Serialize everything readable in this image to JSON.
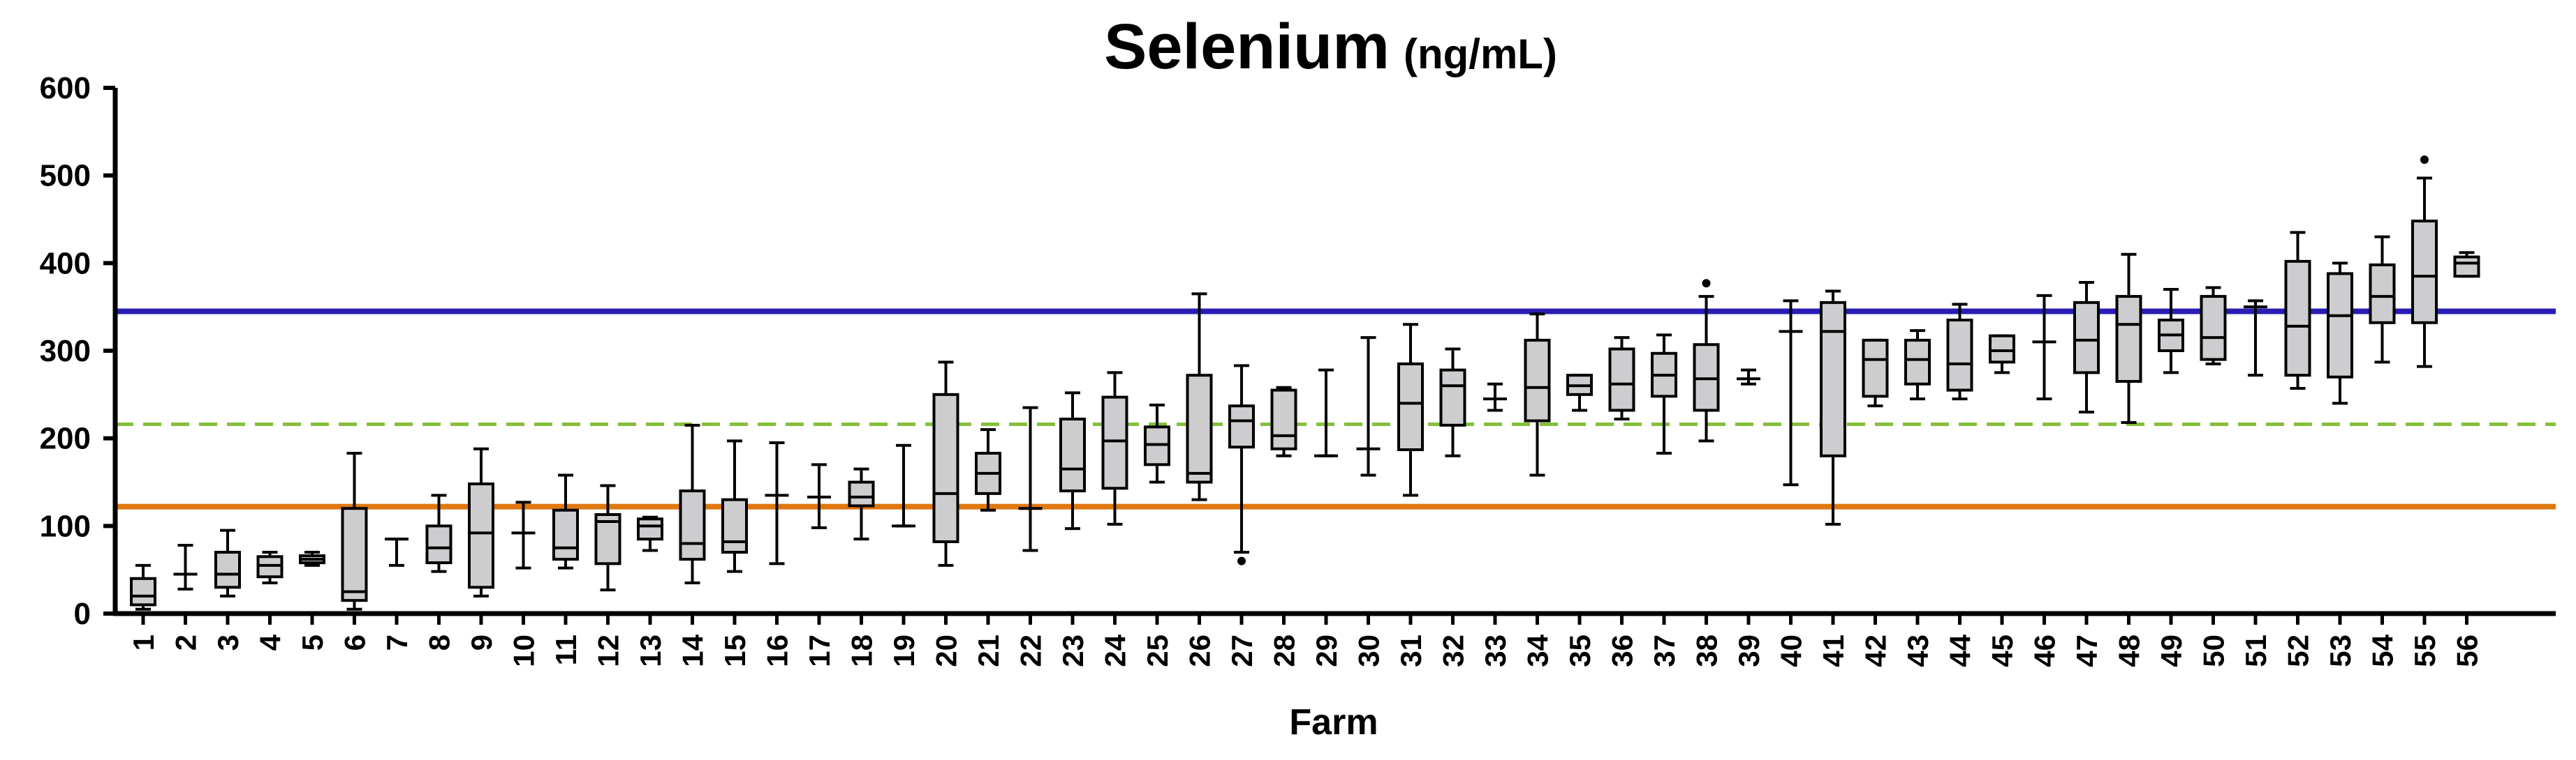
{
  "chart_data": {
    "type": "boxplot",
    "title": "Selenium",
    "title_unit": "(ng/mL)",
    "xlabel": "Farm",
    "ylabel": "",
    "ylim": [
      0,
      600
    ],
    "yticks": [
      0,
      100,
      200,
      300,
      400,
      500,
      600
    ],
    "categories": [
      "1",
      "2",
      "3",
      "4",
      "5",
      "6",
      "7",
      "8",
      "9",
      "10",
      "11",
      "12",
      "13",
      "14",
      "15",
      "16",
      "17",
      "18",
      "19",
      "20",
      "21",
      "22",
      "23",
      "24",
      "25",
      "26",
      "27",
      "28",
      "29",
      "30",
      "31",
      "32",
      "33",
      "34",
      "35",
      "36",
      "37",
      "38",
      "39",
      "40",
      "41",
      "42",
      "43",
      "44",
      "45",
      "46",
      "47",
      "48",
      "49",
      "50",
      "51",
      "52",
      "53",
      "54",
      "55",
      "56"
    ],
    "boxes": [
      {
        "farm": "1",
        "min": 5,
        "q1": 10,
        "median": 20,
        "q3": 40,
        "max": 55,
        "outliers": []
      },
      {
        "farm": "2",
        "min": 28,
        "q1": 45,
        "median": 45,
        "q3": 45,
        "max": 78,
        "outliers": []
      },
      {
        "farm": "3",
        "min": 20,
        "q1": 30,
        "median": 45,
        "q3": 70,
        "max": 95,
        "outliers": []
      },
      {
        "farm": "4",
        "min": 35,
        "q1": 42,
        "median": 55,
        "q3": 65,
        "max": 70,
        "outliers": []
      },
      {
        "farm": "5",
        "min": 55,
        "q1": 58,
        "median": 62,
        "q3": 66,
        "max": 70,
        "outliers": []
      },
      {
        "farm": "6",
        "min": 5,
        "q1": 15,
        "median": 25,
        "q3": 120,
        "max": 183,
        "outliers": []
      },
      {
        "farm": "7",
        "min": 55,
        "q1": 85,
        "median": 85,
        "q3": 85,
        "max": 85,
        "outliers": []
      },
      {
        "farm": "8",
        "min": 48,
        "q1": 58,
        "median": 75,
        "q3": 100,
        "max": 135,
        "outliers": []
      },
      {
        "farm": "9",
        "min": 20,
        "q1": 30,
        "median": 92,
        "q3": 148,
        "max": 188,
        "outliers": []
      },
      {
        "farm": "10",
        "min": 52,
        "q1": 92,
        "median": 92,
        "q3": 92,
        "max": 127,
        "outliers": []
      },
      {
        "farm": "11",
        "min": 52,
        "q1": 62,
        "median": 75,
        "q3": 118,
        "max": 158,
        "outliers": []
      },
      {
        "farm": "12",
        "min": 27,
        "q1": 57,
        "median": 105,
        "q3": 113,
        "max": 146,
        "outliers": []
      },
      {
        "farm": "13",
        "min": 72,
        "q1": 85,
        "median": 100,
        "q3": 108,
        "max": 110,
        "outliers": []
      },
      {
        "farm": "14",
        "min": 35,
        "q1": 62,
        "median": 80,
        "q3": 140,
        "max": 215,
        "outliers": []
      },
      {
        "farm": "15",
        "min": 48,
        "q1": 70,
        "median": 82,
        "q3": 130,
        "max": 197,
        "outliers": []
      },
      {
        "farm": "16",
        "min": 57,
        "q1": 135,
        "median": 135,
        "q3": 135,
        "max": 195,
        "outliers": []
      },
      {
        "farm": "17",
        "min": 98,
        "q1": 133,
        "median": 133,
        "q3": 133,
        "max": 170,
        "outliers": []
      },
      {
        "farm": "18",
        "min": 85,
        "q1": 123,
        "median": 133,
        "q3": 150,
        "max": 165,
        "outliers": []
      },
      {
        "farm": "19",
        "min": 100,
        "q1": 100,
        "median": 100,
        "q3": 100,
        "max": 192,
        "outliers": []
      },
      {
        "farm": "20",
        "min": 55,
        "q1": 82,
        "median": 137,
        "q3": 250,
        "max": 287,
        "outliers": []
      },
      {
        "farm": "21",
        "min": 118,
        "q1": 137,
        "median": 160,
        "q3": 183,
        "max": 210,
        "outliers": []
      },
      {
        "farm": "22",
        "min": 72,
        "q1": 120,
        "median": 120,
        "q3": 120,
        "max": 235,
        "outliers": []
      },
      {
        "farm": "23",
        "min": 97,
        "q1": 140,
        "median": 165,
        "q3": 222,
        "max": 252,
        "outliers": []
      },
      {
        "farm": "24",
        "min": 102,
        "q1": 143,
        "median": 197,
        "q3": 247,
        "max": 275,
        "outliers": []
      },
      {
        "farm": "25",
        "min": 150,
        "q1": 170,
        "median": 193,
        "q3": 213,
        "max": 238,
        "outliers": []
      },
      {
        "farm": "26",
        "min": 130,
        "q1": 150,
        "median": 160,
        "q3": 272,
        "max": 365,
        "outliers": []
      },
      {
        "farm": "27",
        "min": 70,
        "q1": 190,
        "median": 220,
        "q3": 237,
        "max": 283,
        "outliers": [
          60
        ]
      },
      {
        "farm": "28",
        "min": 180,
        "q1": 188,
        "median": 203,
        "q3": 255,
        "max": 258,
        "outliers": []
      },
      {
        "farm": "29",
        "min": 180,
        "q1": 180,
        "median": 180,
        "q3": 180,
        "max": 278,
        "outliers": []
      },
      {
        "farm": "30",
        "min": 158,
        "q1": 188,
        "median": 188,
        "q3": 188,
        "max": 315,
        "outliers": []
      },
      {
        "farm": "31",
        "min": 135,
        "q1": 187,
        "median": 240,
        "q3": 285,
        "max": 330,
        "outliers": []
      },
      {
        "farm": "32",
        "min": 180,
        "q1": 215,
        "median": 260,
        "q3": 278,
        "max": 302,
        "outliers": []
      },
      {
        "farm": "33",
        "min": 232,
        "q1": 245,
        "median": 245,
        "q3": 245,
        "max": 262,
        "outliers": []
      },
      {
        "farm": "34",
        "min": 158,
        "q1": 220,
        "median": 258,
        "q3": 312,
        "max": 342,
        "outliers": []
      },
      {
        "farm": "35",
        "min": 232,
        "q1": 250,
        "median": 260,
        "q3": 272,
        "max": 272,
        "outliers": []
      },
      {
        "farm": "36",
        "min": 222,
        "q1": 232,
        "median": 262,
        "q3": 302,
        "max": 315,
        "outliers": []
      },
      {
        "farm": "37",
        "min": 183,
        "q1": 248,
        "median": 272,
        "q3": 297,
        "max": 318,
        "outliers": []
      },
      {
        "farm": "38",
        "min": 197,
        "q1": 232,
        "median": 268,
        "q3": 307,
        "max": 362,
        "outliers": [
          377
        ]
      },
      {
        "farm": "39",
        "min": 262,
        "q1": 268,
        "median": 268,
        "q3": 268,
        "max": 278,
        "outliers": []
      },
      {
        "farm": "40",
        "min": 147,
        "q1": 322,
        "median": 322,
        "q3": 322,
        "max": 357,
        "outliers": []
      },
      {
        "farm": "41",
        "min": 102,
        "q1": 180,
        "median": 322,
        "q3": 355,
        "max": 368,
        "outliers": []
      },
      {
        "farm": "42",
        "min": 237,
        "q1": 248,
        "median": 290,
        "q3": 312,
        "max": 312,
        "outliers": []
      },
      {
        "farm": "43",
        "min": 245,
        "q1": 262,
        "median": 290,
        "q3": 312,
        "max": 323,
        "outliers": []
      },
      {
        "farm": "44",
        "min": 245,
        "q1": 255,
        "median": 285,
        "q3": 335,
        "max": 353,
        "outliers": []
      },
      {
        "farm": "45",
        "min": 275,
        "q1": 287,
        "median": 300,
        "q3": 317,
        "max": 317,
        "outliers": []
      },
      {
        "farm": "46",
        "min": 245,
        "q1": 310,
        "median": 310,
        "q3": 310,
        "max": 363,
        "outliers": []
      },
      {
        "farm": "47",
        "min": 230,
        "q1": 275,
        "median": 312,
        "q3": 355,
        "max": 378,
        "outliers": []
      },
      {
        "farm": "48",
        "min": 218,
        "q1": 265,
        "median": 330,
        "q3": 362,
        "max": 410,
        "outliers": []
      },
      {
        "farm": "49",
        "min": 275,
        "q1": 300,
        "median": 318,
        "q3": 335,
        "max": 370,
        "outliers": []
      },
      {
        "farm": "50",
        "min": 285,
        "q1": 290,
        "median": 315,
        "q3": 362,
        "max": 372,
        "outliers": []
      },
      {
        "farm": "51",
        "min": 272,
        "q1": 350,
        "median": 350,
        "q3": 350,
        "max": 357,
        "outliers": []
      },
      {
        "farm": "52",
        "min": 257,
        "q1": 272,
        "median": 328,
        "q3": 402,
        "max": 435,
        "outliers": []
      },
      {
        "farm": "53",
        "min": 240,
        "q1": 270,
        "median": 340,
        "q3": 388,
        "max": 400,
        "outliers": []
      },
      {
        "farm": "54",
        "min": 287,
        "q1": 332,
        "median": 362,
        "q3": 398,
        "max": 430,
        "outliers": []
      },
      {
        "farm": "55",
        "min": 282,
        "q1": 332,
        "median": 385,
        "q3": 448,
        "max": 497,
        "outliers": [
          518
        ]
      },
      {
        "farm": "56",
        "min": 385,
        "q1": 385,
        "median": 400,
        "q3": 407,
        "max": 412,
        "outliers": []
      }
    ],
    "reference_lines": [
      {
        "name": "upper-reference",
        "value": 345,
        "color": "#2a1cb4",
        "style": "solid"
      },
      {
        "name": "middle-reference",
        "value": 216,
        "color": "#86bf3a",
        "style": "dashed"
      },
      {
        "name": "lower-reference",
        "value": 122,
        "color": "#e07810",
        "style": "solid"
      }
    ],
    "colors": {
      "box_fill": "#cdcdd0",
      "box_stroke": "#000000",
      "axis": "#000000"
    }
  }
}
